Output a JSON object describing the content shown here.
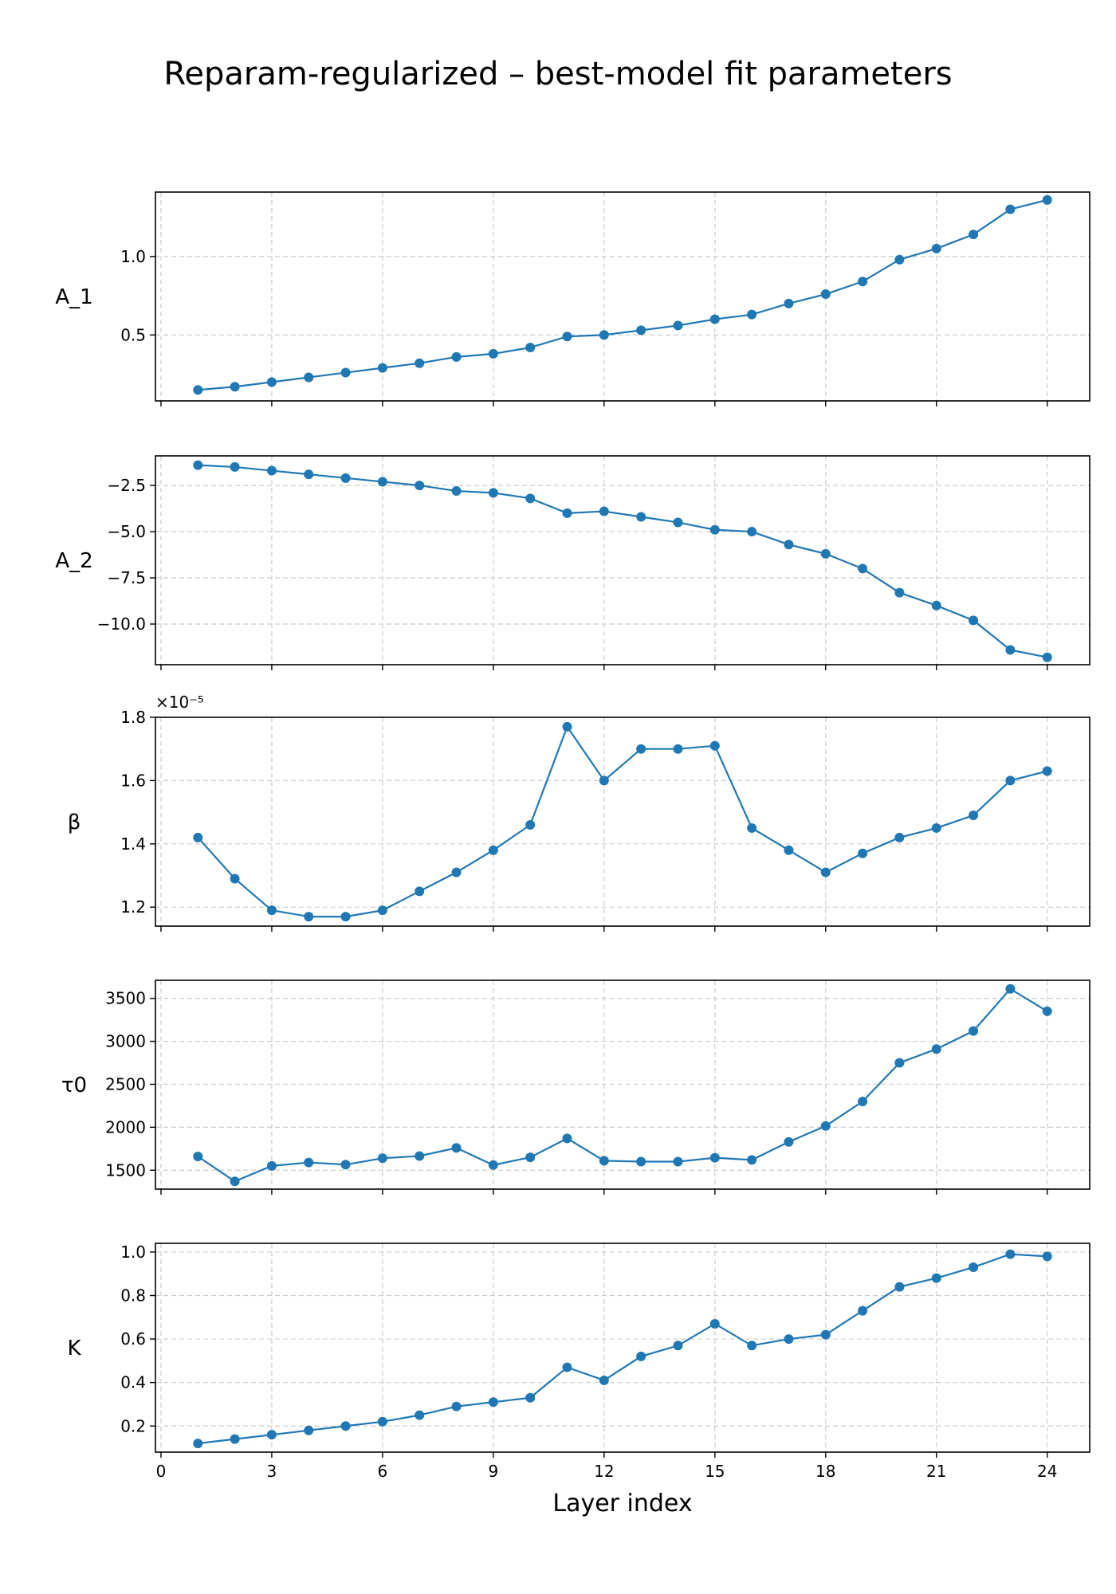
{
  "title": "Reparam-regularized – best-model fit parameters",
  "xlabel": "Layer index",
  "colors": {
    "series": "#1f77b4",
    "grid": "#cccccc",
    "axes": "#000000"
  },
  "chart_data": {
    "type": "line",
    "title": "Reparam-regularized – best-model fit parameters",
    "xlabel": "Layer index",
    "xlim": [
      -0.15,
      25.15
    ],
    "xticks": [
      0,
      3,
      6,
      9,
      12,
      15,
      18,
      21,
      24
    ],
    "grid": true,
    "x": [
      1,
      2,
      3,
      4,
      5,
      6,
      7,
      8,
      9,
      10,
      11,
      12,
      13,
      14,
      15,
      16,
      17,
      18,
      19,
      20,
      21,
      22,
      23,
      24
    ],
    "panels": [
      {
        "ylabel": "A_1",
        "ylim": [
          0.08,
          1.41
        ],
        "yticks": [
          0.5,
          1.0
        ],
        "ytick_labels": [
          "0.5",
          "1.0"
        ],
        "values": [
          0.15,
          0.17,
          0.2,
          0.23,
          0.26,
          0.29,
          0.32,
          0.36,
          0.38,
          0.42,
          0.49,
          0.5,
          0.53,
          0.56,
          0.6,
          0.63,
          0.7,
          0.76,
          0.84,
          0.98,
          1.05,
          1.14,
          1.3,
          1.36
        ]
      },
      {
        "ylabel": "A_2",
        "ylim": [
          -12.2,
          -0.9
        ],
        "yticks": [
          -2.5,
          -5.0,
          -7.5,
          -10.0
        ],
        "ytick_labels": [
          "−2.5",
          "−5.0",
          "−7.5",
          "−10.0"
        ],
        "values": [
          -1.4,
          -1.5,
          -1.7,
          -1.9,
          -2.1,
          -2.3,
          -2.5,
          -2.8,
          -2.9,
          -3.2,
          -4.0,
          -3.9,
          -4.2,
          -4.5,
          -4.9,
          -5.0,
          -5.7,
          -6.2,
          -7.0,
          -8.3,
          -9.0,
          -9.8,
          -11.4,
          -11.8
        ]
      },
      {
        "ylabel": "β",
        "ylim": [
          1.14,
          1.8
        ],
        "yticks": [
          1.2,
          1.4,
          1.6,
          1.8
        ],
        "ytick_labels": [
          "1.2",
          "1.4",
          "1.6",
          "1.8"
        ],
        "offset_text": "×10⁻⁵",
        "values": [
          1.42,
          1.29,
          1.19,
          1.17,
          1.17,
          1.19,
          1.25,
          1.31,
          1.38,
          1.46,
          1.77,
          1.6,
          1.7,
          1.7,
          1.71,
          1.45,
          1.38,
          1.31,
          1.37,
          1.42,
          1.45,
          1.49,
          1.6,
          1.63
        ]
      },
      {
        "ylabel": "τ0",
        "ylim": [
          1280,
          3710
        ],
        "yticks": [
          1500,
          2000,
          2500,
          3000,
          3500
        ],
        "ytick_labels": [
          "1500",
          "2000",
          "2500",
          "3000",
          "3500"
        ],
        "values": [
          1660,
          1370,
          1550,
          1590,
          1565,
          1640,
          1665,
          1760,
          1560,
          1650,
          1870,
          1610,
          1600,
          1600,
          1645,
          1620,
          1830,
          2015,
          2300,
          2750,
          2910,
          3120,
          3610,
          3350
        ]
      },
      {
        "ylabel": "K",
        "ylim": [
          0.08,
          1.04
        ],
        "yticks": [
          0.2,
          0.4,
          0.6,
          0.8,
          1.0
        ],
        "ytick_labels": [
          "0.2",
          "0.4",
          "0.6",
          "0.8",
          "1.0"
        ],
        "values": [
          0.12,
          0.14,
          0.16,
          0.18,
          0.2,
          0.22,
          0.25,
          0.29,
          0.31,
          0.33,
          0.47,
          0.41,
          0.52,
          0.57,
          0.67,
          0.57,
          0.6,
          0.62,
          0.73,
          0.84,
          0.88,
          0.93,
          0.99,
          0.98
        ]
      }
    ]
  }
}
